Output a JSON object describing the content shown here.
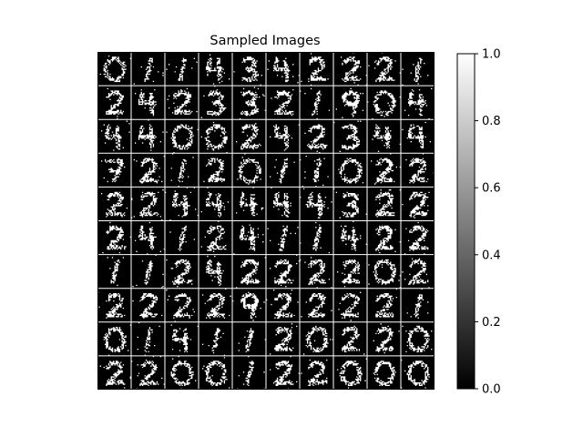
{
  "chart_data": {
    "type": "heatmap",
    "title": "Sampled Images",
    "grid": {
      "rows": 10,
      "cols": 10
    },
    "cmap": "gray",
    "colorbar": {
      "vmin": 0.0,
      "vmax": 1.0,
      "ticks": [
        "0.0",
        "0.2",
        "0.4",
        "0.6",
        "0.8",
        "1.0"
      ]
    },
    "digit_labels": [
      [
        0,
        1,
        1,
        4,
        3,
        4,
        2,
        2,
        2,
        1
      ],
      [
        2,
        4,
        2,
        3,
        3,
        2,
        1,
        9,
        0,
        4
      ],
      [
        4,
        4,
        0,
        0,
        2,
        4,
        2,
        3,
        4,
        4
      ],
      [
        7,
        2,
        1,
        2,
        0,
        1,
        1,
        0,
        2,
        2
      ],
      [
        2,
        2,
        4,
        4,
        4,
        4,
        4,
        3,
        2,
        2
      ],
      [
        2,
        4,
        1,
        2,
        4,
        1,
        1,
        4,
        2,
        2
      ],
      [
        1,
        1,
        2,
        4,
        2,
        2,
        2,
        2,
        0,
        2
      ],
      [
        2,
        2,
        2,
        2,
        9,
        2,
        2,
        2,
        2,
        1
      ],
      [
        0,
        1,
        4,
        1,
        1,
        2,
        0,
        2,
        2,
        0
      ],
      [
        2,
        2,
        0,
        0,
        1,
        2,
        2,
        0,
        0,
        0
      ]
    ]
  }
}
